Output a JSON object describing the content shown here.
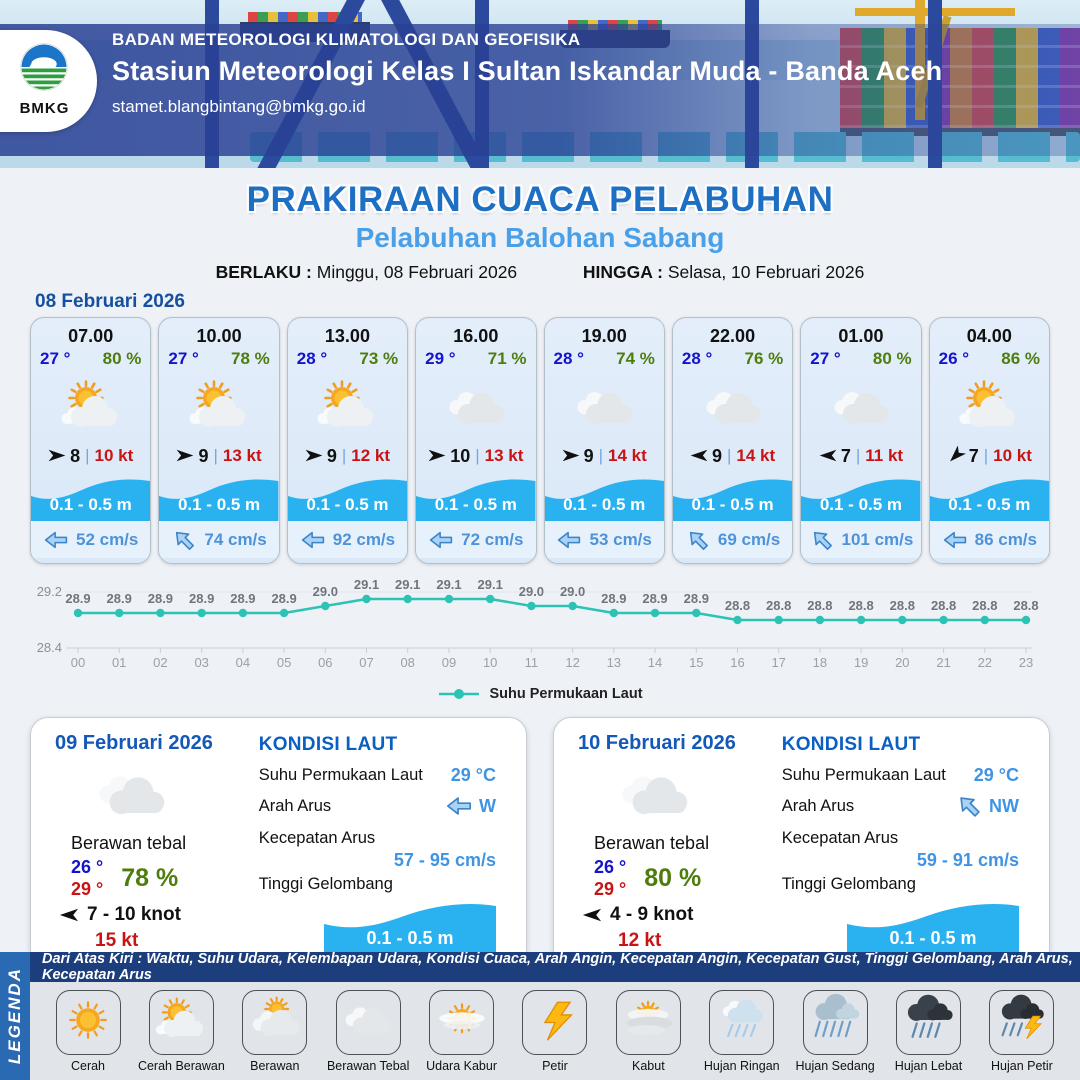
{
  "header": {
    "org": "BADAN METEOROLOGI KLIMATOLOGI DAN GEOFISIKA",
    "station": "Stasiun Meteorologi Kelas I Sultan Iskandar Muda - Banda Aceh",
    "email": "stamet.blangbintang@bmkg.go.id",
    "logo_text": "BMKG"
  },
  "title": {
    "main": "PRAKIRAAN CUACA PELABUHAN",
    "sub": "Pelabuhan Balohan Sabang"
  },
  "validity": {
    "berlaku_label": "BERLAKU :",
    "berlaku_value": "Minggu, 08 Februari 2026",
    "hingga_label": "HINGGA :",
    "hingga_value": "Selasa, 10 Februari 2026"
  },
  "forecast_date": "08 Februari 2026",
  "hourly_cards": [
    {
      "time": "07.00",
      "temp": "27 °",
      "humidity": "80 %",
      "icon": "cerah-berawan",
      "wind_speed": "8",
      "gust": "10 kt",
      "wind_dir_deg": 0,
      "wave": "0.1 - 0.5 m",
      "current": "52 cm/s",
      "current_dir_deg": 180
    },
    {
      "time": "10.00",
      "temp": "27 °",
      "humidity": "78 %",
      "icon": "cerah-berawan",
      "wind_speed": "9",
      "gust": "13 kt",
      "wind_dir_deg": 0,
      "wave": "0.1 - 0.5 m",
      "current": "74 cm/s",
      "current_dir_deg": -135
    },
    {
      "time": "13.00",
      "temp": "28 °",
      "humidity": "73 %",
      "icon": "cerah-berawan",
      "wind_speed": "9",
      "gust": "12 kt",
      "wind_dir_deg": 0,
      "wave": "0.1 - 0.5 m",
      "current": "92 cm/s",
      "current_dir_deg": 180
    },
    {
      "time": "16.00",
      "temp": "29 °",
      "humidity": "71 %",
      "icon": "berawan-tebal",
      "wind_speed": "10",
      "gust": "13 kt",
      "wind_dir_deg": 0,
      "wave": "0.1 - 0.5 m",
      "current": "72 cm/s",
      "current_dir_deg": 180
    },
    {
      "time": "19.00",
      "temp": "28 °",
      "humidity": "74 %",
      "icon": "berawan-tebal",
      "wind_speed": "9",
      "gust": "14 kt",
      "wind_dir_deg": 0,
      "wave": "0.1 - 0.5 m",
      "current": "53 cm/s",
      "current_dir_deg": 180
    },
    {
      "time": "22.00",
      "temp": "28 °",
      "humidity": "76 %",
      "icon": "berawan-tebal",
      "wind_speed": "9",
      "gust": "14 kt",
      "wind_dir_deg": 180,
      "wave": "0.1 - 0.5 m",
      "current": "69 cm/s",
      "current_dir_deg": -135
    },
    {
      "time": "01.00",
      "temp": "27 °",
      "humidity": "80 %",
      "icon": "berawan-tebal",
      "wind_speed": "7",
      "gust": "11 kt",
      "wind_dir_deg": 180,
      "wave": "0.1 - 0.5 m",
      "current": "101 cm/s",
      "current_dir_deg": -135
    },
    {
      "time": "04.00",
      "temp": "26 °",
      "humidity": "86 %",
      "icon": "cerah-berawan",
      "wind_speed": "7",
      "gust": "10 kt",
      "wind_dir_deg": 135,
      "wave": "0.1 - 0.5 m",
      "current": "86 cm/s",
      "current_dir_deg": 180
    }
  ],
  "chart_data": {
    "type": "line",
    "legend_label": "Suhu Permukaan Laut",
    "x": [
      "00",
      "01",
      "02",
      "03",
      "04",
      "05",
      "06",
      "07",
      "08",
      "09",
      "10",
      "11",
      "12",
      "13",
      "14",
      "15",
      "16",
      "17",
      "18",
      "19",
      "20",
      "21",
      "22",
      "23"
    ],
    "values": [
      28.9,
      28.9,
      28.9,
      28.9,
      28.9,
      28.9,
      29.0,
      29.1,
      29.1,
      29.1,
      29.1,
      29.0,
      29.0,
      28.9,
      28.9,
      28.9,
      28.8,
      28.8,
      28.8,
      28.8,
      28.8,
      28.8,
      28.8,
      28.8
    ],
    "ylim": [
      28.4,
      29.2
    ],
    "yticks": [
      "29.2",
      "28.4"
    ],
    "line_color": "#2cc3b4",
    "grid": true,
    "legend_position": "bottom"
  },
  "sea_labels": {
    "title": "KONDISI LAUT",
    "sst_label": "Suhu Permukaan Laut",
    "dir_label": "Arah Arus",
    "speed_label": "Kecepatan Arus",
    "wave_label": "Tinggi Gelombang"
  },
  "daily_cards": [
    {
      "date": "09 Februari 2026",
      "icon": "berawan-tebal",
      "condition": "Berawan tebal",
      "temp_min": "26 °",
      "temp_max": "29 °",
      "humidity": "78 %",
      "wind_range": "7 - 10 knot",
      "gust": "15 kt",
      "wind_dir_deg": 180,
      "sea": {
        "sst": "29 °C",
        "current_dir": "W",
        "current_dir_deg": 180,
        "current_speed": "57 - 95 cm/s",
        "wave": "0.1 - 0.5 m"
      }
    },
    {
      "date": "10 Februari 2026",
      "icon": "berawan-tebal",
      "condition": "Berawan tebal",
      "temp_min": "26 °",
      "temp_max": "29 °",
      "humidity": "80 %",
      "wind_range": "4 - 9 knot",
      "gust": "12 kt",
      "wind_dir_deg": 180,
      "sea": {
        "sst": "29 °C",
        "current_dir": "NW",
        "current_dir_deg": -135,
        "current_speed": "59 - 91 cm/s",
        "wave": "0.1 - 0.5 m"
      }
    }
  ],
  "legend": {
    "title": "LEGENDA",
    "caption": "Dari Atas Kiri : Waktu, Suhu Udara, Kelembapan Udara, Kondisi Cuaca, Arah Angin, Kecepatan Angin, Kecepatan Gust, Tinggi Gelombang, Arah Arus, Kecepatan Arus",
    "items": [
      {
        "label": "Cerah",
        "icon": "cerah"
      },
      {
        "label": "Cerah Berawan",
        "icon": "cerah-berawan"
      },
      {
        "label": "Berawan",
        "icon": "berawan"
      },
      {
        "label": "Berawan Tebal",
        "icon": "berawan-tebal"
      },
      {
        "label": "Udara Kabur",
        "icon": "udara-kabur"
      },
      {
        "label": "Petir",
        "icon": "petir"
      },
      {
        "label": "Kabut",
        "icon": "kabut"
      },
      {
        "label": "Hujan Ringan",
        "icon": "hujan-ringan"
      },
      {
        "label": "Hujan Sedang",
        "icon": "hujan-sedang"
      },
      {
        "label": "Hujan Lebat",
        "icon": "hujan-lebat"
      },
      {
        "label": "Hujan Petir",
        "icon": "hujan-petir"
      }
    ]
  },
  "colors": {
    "title_blue": "#1c6fc2",
    "subtitle_blue": "#4aa0e8",
    "date_blue": "#164f9e",
    "temp_blue": "#1414cc",
    "humidity_green": "#4e7d0e",
    "gust_red": "#c81414",
    "wave_cyan": "#29b2ef",
    "current_blue": "#4d93d9",
    "kondisi_blue": "#0a5fc2",
    "chart_teal": "#2cc3b4",
    "legend_bar": "#1c3e7c",
    "legend_strip": "#2a6ab3"
  }
}
